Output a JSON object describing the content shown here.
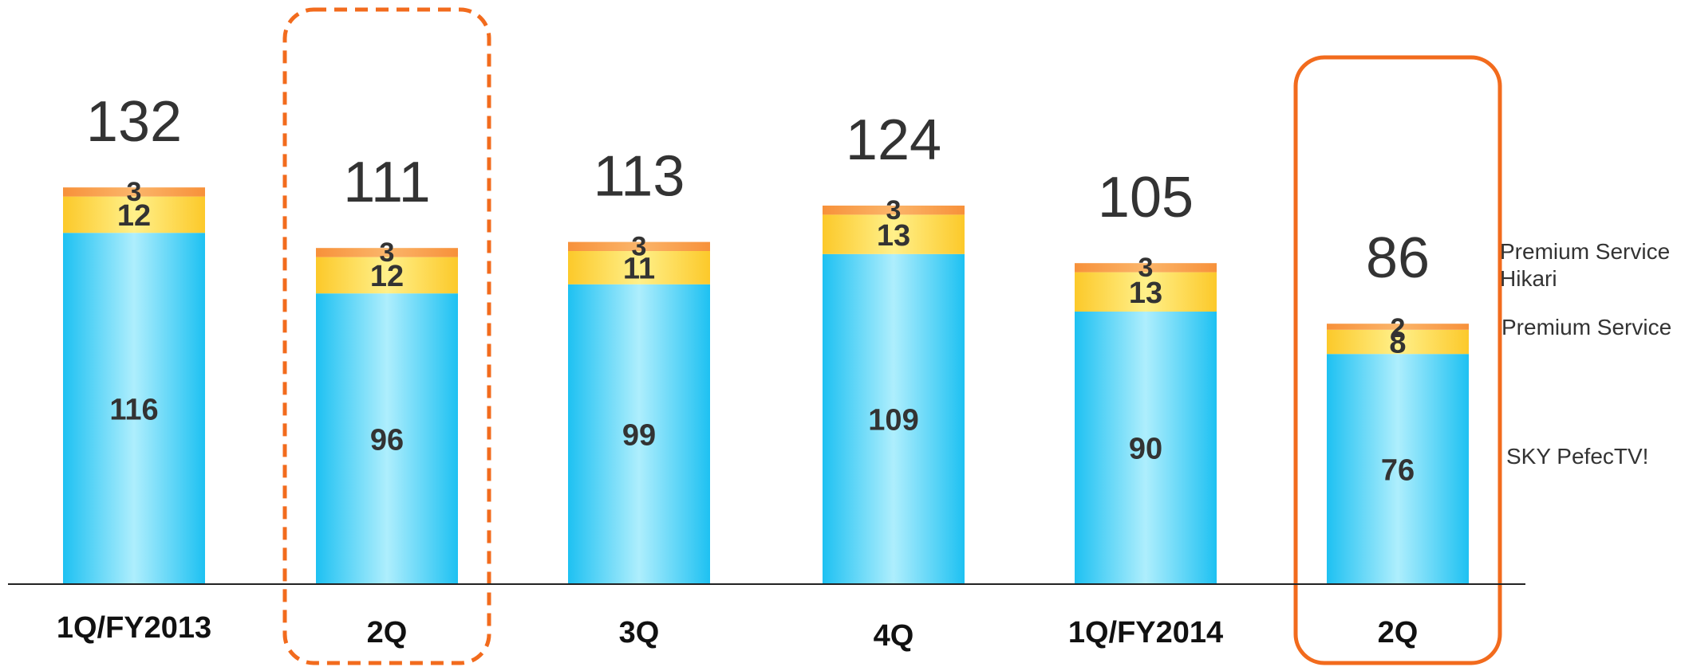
{
  "chart_data": {
    "type": "bar",
    "stacked": true,
    "categories": [
      "1Q/FY2013",
      "2Q",
      "3Q",
      "4Q",
      "1Q/FY2014",
      "2Q"
    ],
    "series": [
      {
        "name": "SKY PefecTV!",
        "values": [
          116,
          96,
          99,
          109,
          90,
          76
        ],
        "color": "#29c8f5"
      },
      {
        "name": "Premium Service",
        "values": [
          12,
          12,
          11,
          13,
          13,
          8
        ],
        "color": "#fdd132"
      },
      {
        "name": "Premium Service Hikari",
        "values": [
          3,
          3,
          3,
          3,
          3,
          2
        ],
        "color": "#f9a046"
      }
    ],
    "totals": [
      132,
      111,
      113,
      124,
      105,
      86
    ],
    "highlight": [
      {
        "category_index": 1,
        "style": "dashed",
        "color": "#f26b1d"
      },
      {
        "category_index": 5,
        "style": "solid",
        "color": "#f26b1d"
      }
    ],
    "legend": {
      "position": "right",
      "labels": [
        "Premium Service\nHikari",
        "Premium Service",
        "SKY PefecTV!"
      ]
    },
    "ylim": [
      0,
      150
    ],
    "grid": false
  }
}
